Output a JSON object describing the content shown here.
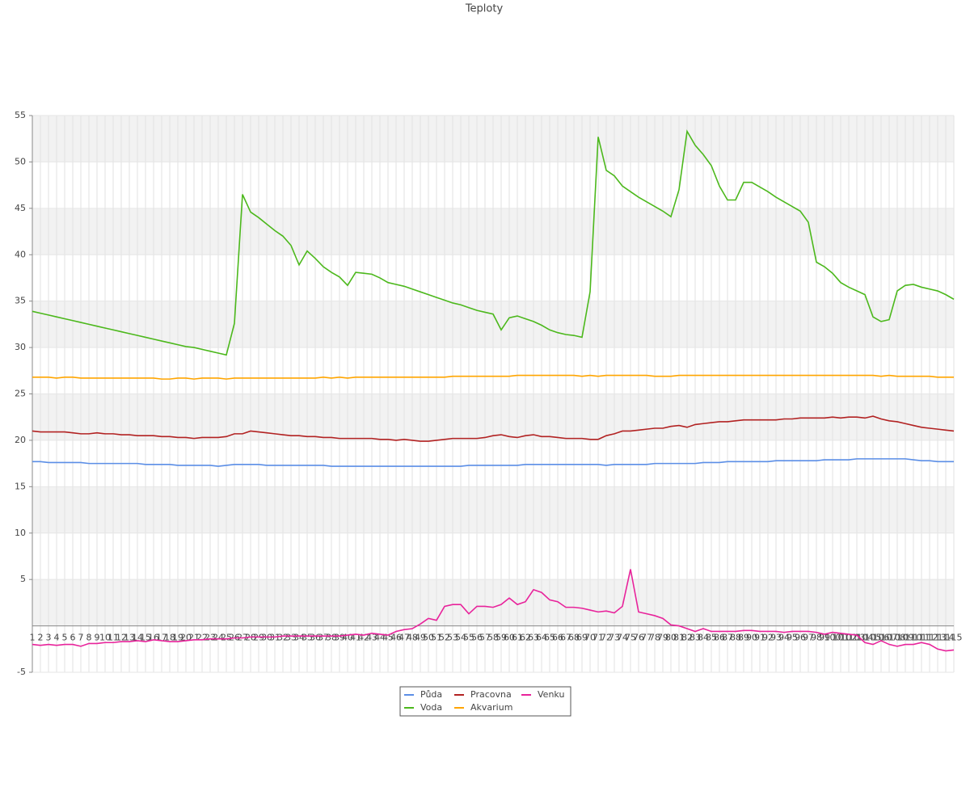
{
  "chart_data": {
    "type": "line",
    "title": "Teploty",
    "categories": [
      1,
      2,
      3,
      4,
      5,
      6,
      7,
      8,
      9,
      10,
      11,
      12,
      13,
      14,
      15,
      16,
      17,
      18,
      19,
      20,
      21,
      22,
      23,
      24,
      25,
      26,
      27,
      28,
      29,
      30,
      31,
      32,
      33,
      34,
      35,
      36,
      37,
      38,
      39,
      40,
      41,
      42,
      43,
      44,
      45,
      46,
      47,
      48,
      49,
      50,
      51,
      52,
      53,
      54,
      55,
      56,
      57,
      58,
      59,
      60,
      61,
      62,
      63,
      64,
      65,
      66,
      67,
      68,
      69,
      70,
      71,
      72,
      73,
      74,
      75,
      76,
      77,
      78,
      79,
      80,
      81,
      82,
      83,
      84,
      85,
      86,
      87,
      88,
      89,
      90,
      91,
      92,
      93,
      94,
      95,
      96,
      97,
      98,
      99,
      100,
      101,
      102,
      103,
      104,
      105,
      106,
      107,
      108,
      109,
      110,
      111,
      112,
      113,
      114,
      115
    ],
    "series": [
      {
        "name": "Půda",
        "color": "#5b8ee6",
        "values": [
          17.7,
          17.7,
          17.6,
          17.6,
          17.6,
          17.6,
          17.6,
          17.5,
          17.5,
          17.5,
          17.5,
          17.5,
          17.5,
          17.5,
          17.4,
          17.4,
          17.4,
          17.4,
          17.3,
          17.3,
          17.3,
          17.3,
          17.3,
          17.2,
          17.3,
          17.4,
          17.4,
          17.4,
          17.4,
          17.3,
          17.3,
          17.3,
          17.3,
          17.3,
          17.3,
          17.3,
          17.3,
          17.2,
          17.2,
          17.2,
          17.2,
          17.2,
          17.2,
          17.2,
          17.2,
          17.2,
          17.2,
          17.2,
          17.2,
          17.2,
          17.2,
          17.2,
          17.2,
          17.2,
          17.3,
          17.3,
          17.3,
          17.3,
          17.3,
          17.3,
          17.3,
          17.4,
          17.4,
          17.4,
          17.4,
          17.4,
          17.4,
          17.4,
          17.4,
          17.4,
          17.4,
          17.3,
          17.4,
          17.4,
          17.4,
          17.4,
          17.4,
          17.5,
          17.5,
          17.5,
          17.5,
          17.5,
          17.5,
          17.6,
          17.6,
          17.6,
          17.7,
          17.7,
          17.7,
          17.7,
          17.7,
          17.7,
          17.8,
          17.8,
          17.8,
          17.8,
          17.8,
          17.8,
          17.9,
          17.9,
          17.9,
          17.9,
          18.0,
          18.0,
          18.0,
          18.0,
          18.0,
          18.0,
          18.0,
          17.9,
          17.8,
          17.8,
          17.7,
          17.7,
          17.7
        ]
      },
      {
        "name": "Voda",
        "color": "#4cb81c",
        "values": [
          33.9,
          33.7,
          33.5,
          33.3,
          33.1,
          32.9,
          32.7,
          32.5,
          32.3,
          32.1,
          31.9,
          31.7,
          31.5,
          31.3,
          31.1,
          30.9,
          30.7,
          30.5,
          30.3,
          30.1,
          30.0,
          29.8,
          29.6,
          29.4,
          29.2,
          32.6,
          46.5,
          44.6,
          44.0,
          43.3,
          42.6,
          42.0,
          41.0,
          38.9,
          40.4,
          39.6,
          38.7,
          38.1,
          37.6,
          36.7,
          38.1,
          38.0,
          37.9,
          37.5,
          37.0,
          36.8,
          36.6,
          36.3,
          36.0,
          35.7,
          35.4,
          35.1,
          34.8,
          34.6,
          34.3,
          34.0,
          33.8,
          33.6,
          31.9,
          33.2,
          33.4,
          33.1,
          32.8,
          32.4,
          31.9,
          31.6,
          31.4,
          31.3,
          31.1,
          36.0,
          52.7,
          49.1,
          48.5,
          47.4,
          46.8,
          46.2,
          45.7,
          45.2,
          44.7,
          44.1,
          47.0,
          53.3,
          51.8,
          50.8,
          49.6,
          47.4,
          45.9,
          45.9,
          47.8,
          47.8,
          47.3,
          46.8,
          46.2,
          45.7,
          45.2,
          44.7,
          43.5,
          39.2,
          38.7,
          38.0,
          37.0,
          36.5,
          36.1,
          35.7,
          33.3,
          32.8,
          33.0,
          36.1,
          36.7,
          36.8,
          36.5,
          36.3,
          36.1,
          35.7,
          35.2
        ]
      },
      {
        "name": "Pracovna",
        "color": "#b22222",
        "values": [
          21.0,
          20.9,
          20.9,
          20.9,
          20.9,
          20.8,
          20.7,
          20.7,
          20.8,
          20.7,
          20.7,
          20.6,
          20.6,
          20.5,
          20.5,
          20.5,
          20.4,
          20.4,
          20.3,
          20.3,
          20.2,
          20.3,
          20.3,
          20.3,
          20.4,
          20.7,
          20.7,
          21.0,
          20.9,
          20.8,
          20.7,
          20.6,
          20.5,
          20.5,
          20.4,
          20.4,
          20.3,
          20.3,
          20.2,
          20.2,
          20.2,
          20.2,
          20.2,
          20.1,
          20.1,
          20.0,
          20.1,
          20.0,
          19.9,
          19.9,
          20.0,
          20.1,
          20.2,
          20.2,
          20.2,
          20.2,
          20.3,
          20.5,
          20.6,
          20.4,
          20.3,
          20.5,
          20.6,
          20.4,
          20.4,
          20.3,
          20.2,
          20.2,
          20.2,
          20.1,
          20.1,
          20.5,
          20.7,
          21.0,
          21.0,
          21.1,
          21.2,
          21.3,
          21.3,
          21.5,
          21.6,
          21.4,
          21.7,
          21.8,
          21.9,
          22.0,
          22.0,
          22.1,
          22.2,
          22.2,
          22.2,
          22.2,
          22.2,
          22.3,
          22.3,
          22.4,
          22.4,
          22.4,
          22.4,
          22.5,
          22.4,
          22.5,
          22.5,
          22.4,
          22.6,
          22.3,
          22.1,
          22.0,
          21.8,
          21.6,
          21.4,
          21.3,
          21.2,
          21.1,
          21.0
        ]
      },
      {
        "name": "Akvarium",
        "color": "#ffa500",
        "values": [
          26.8,
          26.8,
          26.8,
          26.7,
          26.8,
          26.8,
          26.7,
          26.7,
          26.7,
          26.7,
          26.7,
          26.7,
          26.7,
          26.7,
          26.7,
          26.7,
          26.6,
          26.6,
          26.7,
          26.7,
          26.6,
          26.7,
          26.7,
          26.7,
          26.6,
          26.7,
          26.7,
          26.7,
          26.7,
          26.7,
          26.7,
          26.7,
          26.7,
          26.7,
          26.7,
          26.7,
          26.8,
          26.7,
          26.8,
          26.7,
          26.8,
          26.8,
          26.8,
          26.8,
          26.8,
          26.8,
          26.8,
          26.8,
          26.8,
          26.8,
          26.8,
          26.8,
          26.9,
          26.9,
          26.9,
          26.9,
          26.9,
          26.9,
          26.9,
          26.9,
          27.0,
          27.0,
          27.0,
          27.0,
          27.0,
          27.0,
          27.0,
          27.0,
          26.9,
          27.0,
          26.9,
          27.0,
          27.0,
          27.0,
          27.0,
          27.0,
          27.0,
          26.9,
          26.9,
          26.9,
          27.0,
          27.0,
          27.0,
          27.0,
          27.0,
          27.0,
          27.0,
          27.0,
          27.0,
          27.0,
          27.0,
          27.0,
          27.0,
          27.0,
          27.0,
          27.0,
          27.0,
          27.0,
          27.0,
          27.0,
          27.0,
          27.0,
          27.0,
          27.0,
          27.0,
          26.9,
          27.0,
          26.9,
          26.9,
          26.9,
          26.9,
          26.9,
          26.8,
          26.8,
          26.8
        ]
      },
      {
        "name": "Venku",
        "color": "#e8239b",
        "values": [
          -2.0,
          -2.1,
          -2.0,
          -2.1,
          -2.0,
          -2.0,
          -2.2,
          -1.9,
          -1.9,
          -1.8,
          -1.8,
          -1.7,
          -1.7,
          -1.6,
          -1.7,
          -1.5,
          -1.6,
          -1.7,
          -1.7,
          -1.6,
          -1.5,
          -1.5,
          -1.4,
          -1.4,
          -1.4,
          -1.3,
          -1.3,
          -1.2,
          -1.2,
          -1.2,
          -1.2,
          -1.1,
          -1.1,
          -1.1,
          -1.1,
          -1.1,
          -1.1,
          -1.1,
          -1.1,
          -1.0,
          -0.9,
          -1.0,
          -0.8,
          -0.9,
          -1.0,
          -0.6,
          -0.4,
          -0.3,
          0.2,
          0.8,
          0.6,
          2.1,
          2.3,
          2.3,
          1.3,
          2.1,
          2.1,
          2.0,
          2.3,
          3.0,
          2.3,
          2.6,
          3.9,
          3.6,
          2.8,
          2.6,
          2.0,
          2.0,
          1.9,
          1.7,
          1.5,
          1.6,
          1.4,
          2.1,
          6.1,
          1.5,
          1.3,
          1.1,
          0.8,
          0.1,
          0.0,
          -0.3,
          -0.6,
          -0.3,
          -0.6,
          -0.6,
          -0.6,
          -0.6,
          -0.5,
          -0.5,
          -0.6,
          -0.6,
          -0.6,
          -0.7,
          -0.6,
          -0.6,
          -0.6,
          -0.7,
          -0.9,
          -0.7,
          -0.8,
          -0.9,
          -1.0,
          -1.8,
          -2.0,
          -1.6,
          -2.0,
          -2.2,
          -2.0,
          -2.0,
          -1.8,
          -2.0,
          -2.5,
          -2.7,
          -2.6
        ]
      }
    ],
    "ylim": [
      -5,
      55
    ],
    "yticks": [
      -5,
      5,
      10,
      15,
      20,
      25,
      30,
      35,
      40,
      45,
      50,
      55
    ],
    "grid": true,
    "legend": "bottom"
  }
}
